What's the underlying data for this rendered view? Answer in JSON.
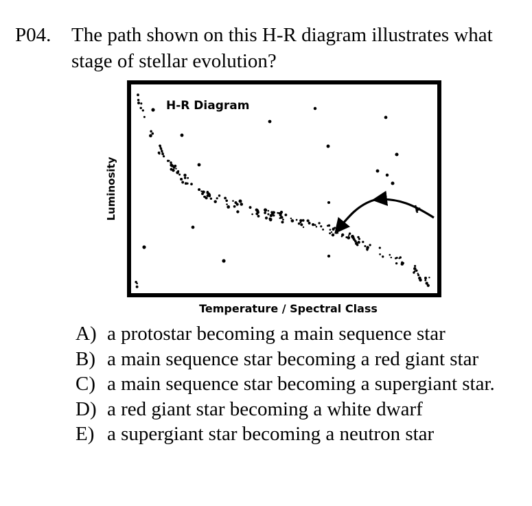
{
  "question": {
    "number": "P04.",
    "text": "The path shown on this H-R diagram illustrates what stage of stellar evolution?"
  },
  "diagram": {
    "title": "H-R Diagram",
    "ylabel": "Luminosity",
    "xlabel": "Temperature / Spectral Class"
  },
  "options": [
    {
      "letter": "A)",
      "text": "a protostar becoming a main sequence star"
    },
    {
      "letter": "B)",
      "text": "a main sequence star becoming a red giant star"
    },
    {
      "letter": "C)",
      "text": "a main sequence star becoming a supergiant star."
    },
    {
      "letter": "D)",
      "text": "a red giant star becoming a white dwarf"
    },
    {
      "letter": "E)",
      "text": "a supergiant star becoming a neutron star"
    }
  ]
}
